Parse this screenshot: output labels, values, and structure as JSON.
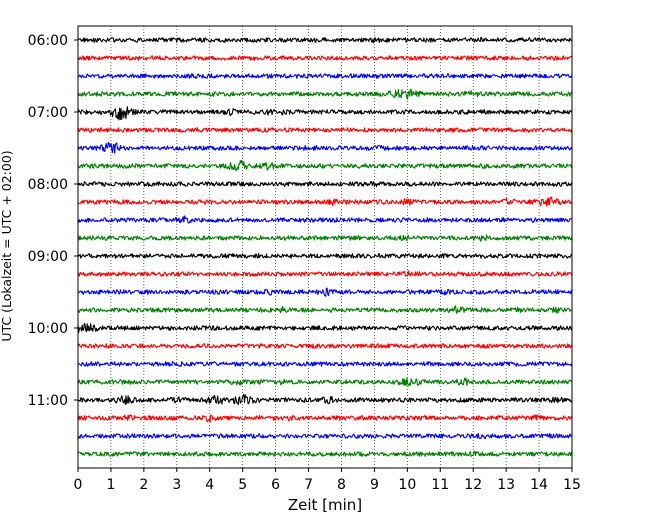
{
  "chart_data": {
    "type": "line",
    "title": "",
    "xlabel": "Zeit  [min]",
    "ylabel": "UTC (Lokalzeit = UTC + 02:00)",
    "xlim": [
      0,
      15
    ],
    "x_ticks": [
      0,
      1,
      2,
      3,
      4,
      5,
      6,
      7,
      8,
      9,
      10,
      11,
      12,
      13,
      14,
      15
    ],
    "y_ticks": [
      "06:00",
      "07:00",
      "08:00",
      "09:00",
      "10:00",
      "11:00"
    ],
    "grid": "vertical dotted",
    "trace_interval_min": 15,
    "trace_colors": [
      "#000000",
      "#ff0000",
      "#0000ff",
      "#008000"
    ],
    "traces": [
      {
        "start": "06:00",
        "bursts": [
          {
            "t": 9.0,
            "amp": 1.3
          },
          {
            "t": 12.2,
            "amp": 1.2
          }
        ]
      },
      {
        "start": "06:15",
        "bursts": [
          {
            "t": 8.7,
            "amp": 1.1
          }
        ]
      },
      {
        "start": "06:30",
        "bursts": [
          {
            "t": 12.8,
            "amp": 1.0
          }
        ]
      },
      {
        "start": "06:45",
        "bursts": [
          {
            "t": 10.0,
            "amp": 2.2
          },
          {
            "t": 9.6,
            "amp": 1.4
          },
          {
            "t": 11.9,
            "amp": 1.4
          }
        ]
      },
      {
        "start": "07:00",
        "bursts": [
          {
            "t": 1.3,
            "amp": 3.0
          },
          {
            "t": 4.6,
            "amp": 1.6
          },
          {
            "t": 5.7,
            "amp": 1.6
          },
          {
            "t": 6.3,
            "amp": 1.3
          }
        ]
      },
      {
        "start": "07:15",
        "bursts": [
          {
            "t": 2.6,
            "amp": 1.0
          }
        ]
      },
      {
        "start": "07:30",
        "bursts": [
          {
            "t": 1.0,
            "amp": 2.2
          },
          {
            "t": 7.0,
            "amp": 1.4
          },
          {
            "t": 9.2,
            "amp": 1.2
          }
        ]
      },
      {
        "start": "07:45",
        "bursts": [
          {
            "t": 4.9,
            "amp": 2.2
          },
          {
            "t": 5.8,
            "amp": 1.7
          },
          {
            "t": 3.3,
            "amp": 1.2
          }
        ]
      },
      {
        "start": "08:00",
        "bursts": [
          {
            "t": 9.0,
            "amp": 1.3
          },
          {
            "t": 7.2,
            "amp": 1.1
          }
        ]
      },
      {
        "start": "08:15",
        "bursts": [
          {
            "t": 7.8,
            "amp": 1.6
          },
          {
            "t": 10.0,
            "amp": 1.6
          },
          {
            "t": 14.3,
            "amp": 2.0
          },
          {
            "t": 13.1,
            "amp": 1.5
          }
        ]
      },
      {
        "start": "08:30",
        "bursts": [
          {
            "t": 2.5,
            "amp": 1.2
          },
          {
            "t": 3.2,
            "amp": 1.7
          },
          {
            "t": 7.6,
            "amp": 1.2
          }
        ]
      },
      {
        "start": "08:45",
        "bursts": [
          {
            "t": 9.9,
            "amp": 1.4
          },
          {
            "t": 12.3,
            "amp": 1.5
          }
        ]
      },
      {
        "start": "09:00",
        "bursts": [
          {
            "t": 5.3,
            "amp": 1.1
          }
        ]
      },
      {
        "start": "09:15",
        "bursts": [
          {
            "t": 10.0,
            "amp": 1.4
          },
          {
            "t": 12.6,
            "amp": 1.1
          }
        ]
      },
      {
        "start": "09:30",
        "bursts": [
          {
            "t": 5.8,
            "amp": 1.4
          },
          {
            "t": 7.5,
            "amp": 1.8
          },
          {
            "t": 11.1,
            "amp": 1.3
          }
        ]
      },
      {
        "start": "09:45",
        "bursts": [
          {
            "t": 6.2,
            "amp": 1.5
          },
          {
            "t": 11.5,
            "amp": 1.8
          },
          {
            "t": 13.3,
            "amp": 1.4
          },
          {
            "t": 14.5,
            "amp": 1.3
          }
        ]
      },
      {
        "start": "10:00",
        "bursts": [
          {
            "t": 0.2,
            "amp": 2.2
          },
          {
            "t": 4.0,
            "amp": 1.1
          },
          {
            "t": 13.5,
            "amp": 1.1
          }
        ]
      },
      {
        "start": "10:15",
        "bursts": [
          {
            "t": 1.0,
            "amp": 1.0
          }
        ]
      },
      {
        "start": "10:30",
        "bursts": [
          {
            "t": 3.0,
            "amp": 1.2
          },
          {
            "t": 6.8,
            "amp": 1.1
          },
          {
            "t": 10.4,
            "amp": 1.1
          }
        ]
      },
      {
        "start": "10:45",
        "bursts": [
          {
            "t": 4.9,
            "amp": 1.6
          },
          {
            "t": 10.1,
            "amp": 2.0
          },
          {
            "t": 11.7,
            "amp": 1.8
          },
          {
            "t": 1.2,
            "amp": 1.2
          },
          {
            "t": 6.2,
            "amp": 1.3
          }
        ]
      },
      {
        "start": "11:00",
        "bursts": [
          {
            "t": 1.4,
            "amp": 2.0
          },
          {
            "t": 4.2,
            "amp": 1.9
          },
          {
            "t": 5.0,
            "amp": 2.2
          },
          {
            "t": 7.6,
            "amp": 1.8
          },
          {
            "t": 3.0,
            "amp": 1.4
          },
          {
            "t": 14.5,
            "amp": 1.4
          }
        ]
      },
      {
        "start": "11:15",
        "bursts": [
          {
            "t": 1.5,
            "amp": 1.5
          },
          {
            "t": 4.0,
            "amp": 1.8
          },
          {
            "t": 6.4,
            "amp": 1.3
          },
          {
            "t": 13.9,
            "amp": 1.4
          }
        ]
      },
      {
        "start": "11:30",
        "bursts": [
          {
            "t": 12.3,
            "amp": 1.3
          }
        ]
      },
      {
        "start": "11:45",
        "bursts": [
          {
            "t": 12.0,
            "amp": 1.2
          }
        ]
      }
    ]
  }
}
